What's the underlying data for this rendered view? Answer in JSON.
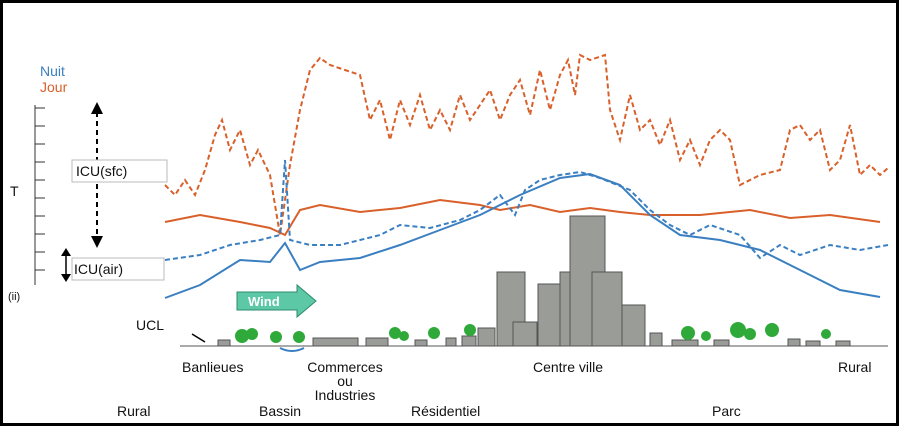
{
  "legend": {
    "night": "Nuit",
    "day": "Jour"
  },
  "axis": {
    "label": "T",
    "panel": "(ii)"
  },
  "annotations": {
    "icu_surface": "ICU(sfc)",
    "icu_air": "ICU(air)",
    "wind": "Wind",
    "ucl": "UCL"
  },
  "zones_upper": {
    "suburbs": "Banlieues",
    "commerce": [
      "Commerces",
      "ou",
      "Industries"
    ],
    "downtown": "Centre ville",
    "rural_right": "Rural"
  },
  "zones_lower": {
    "rural_left": "Rural",
    "basin": "Bassin",
    "residential": "Résidentiel",
    "park": "Parc"
  }
}
